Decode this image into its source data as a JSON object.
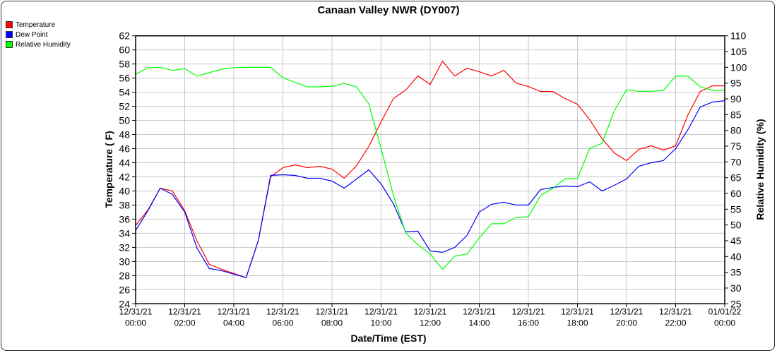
{
  "chart_data": {
    "type": "line",
    "title": "Canaan Valley NWR (DY007)",
    "xlabel": "Date/Time (EST)",
    "ylabel": "Temperature ( F)",
    "y2label": "Relative Humidity (%)",
    "ylim": [
      24,
      62
    ],
    "y2lim": [
      25,
      110
    ],
    "yticks": [
      24,
      26,
      28,
      30,
      32,
      34,
      36,
      38,
      40,
      42,
      44,
      46,
      48,
      50,
      52,
      54,
      56,
      58,
      60,
      62
    ],
    "y2ticks": [
      25,
      30,
      35,
      40,
      45,
      50,
      55,
      60,
      65,
      70,
      75,
      80,
      85,
      90,
      95,
      100,
      105,
      110
    ],
    "xlim_hours": [
      0,
      24
    ],
    "xticks": [
      {
        "h": 0,
        "date": "12/31/21",
        "time": "00:00"
      },
      {
        "h": 2,
        "date": "12/31/21",
        "time": "02:00"
      },
      {
        "h": 4,
        "date": "12/31/21",
        "time": "04:00"
      },
      {
        "h": 6,
        "date": "12/31/21",
        "time": "06:00"
      },
      {
        "h": 8,
        "date": "12/31/21",
        "time": "08:00"
      },
      {
        "h": 10,
        "date": "12/31/21",
        "time": "10:00"
      },
      {
        "h": 12,
        "date": "12/31/21",
        "time": "12:00"
      },
      {
        "h": 14,
        "date": "12/31/21",
        "time": "14:00"
      },
      {
        "h": 16,
        "date": "12/31/21",
        "time": "16:00"
      },
      {
        "h": 18,
        "date": "12/31/21",
        "time": "18:00"
      },
      {
        "h": 20,
        "date": "12/31/21",
        "time": "20:00"
      },
      {
        "h": 22,
        "date": "12/31/21",
        "time": "22:00"
      },
      {
        "h": 24,
        "date": "01/01/22",
        "time": "00:00"
      }
    ],
    "grid": true,
    "legend_position": "top-left",
    "x_hours": [
      0,
      0.5,
      1,
      1.5,
      2,
      2.5,
      3,
      3.5,
      4,
      4.5,
      5,
      5.5,
      6,
      6.5,
      7,
      7.5,
      8,
      8.5,
      9,
      9.5,
      10,
      10.5,
      11,
      11.5,
      12,
      12.5,
      13,
      13.5,
      14,
      14.5,
      15,
      15.5,
      16,
      16.5,
      17,
      17.5,
      18,
      18.5,
      19,
      19.5,
      20,
      20.5,
      21,
      21.5,
      22,
      22.5,
      23,
      23.5,
      24
    ],
    "series": [
      {
        "name": "Temperature",
        "axis": "left",
        "color": "#ff0000",
        "values": [
          35.1,
          37.3,
          40.4,
          40.0,
          37.2,
          32.9,
          29.6,
          28.9,
          28.3,
          27.7,
          33.0,
          42.0,
          43.3,
          43.7,
          43.3,
          43.5,
          43.1,
          41.8,
          43.6,
          46.3,
          49.8,
          53.1,
          54.3,
          56.3,
          55.1,
          58.4,
          56.3,
          57.4,
          56.9,
          56.3,
          57.1,
          55.3,
          54.8,
          54.1,
          54.1,
          53.1,
          52.3,
          50.1,
          47.4,
          45.4,
          44.3,
          45.9,
          46.4,
          45.8,
          46.4,
          50.8,
          54.1,
          54.9,
          54.9
        ]
      },
      {
        "name": "Dew Point",
        "axis": "left",
        "color": "#0000ff",
        "values": [
          34.4,
          37.2,
          40.4,
          39.5,
          37.0,
          31.9,
          29.0,
          28.7,
          28.2,
          27.7,
          33.0,
          42.2,
          42.3,
          42.2,
          41.8,
          41.8,
          41.4,
          40.4,
          41.7,
          43.0,
          41.0,
          38.2,
          34.2,
          34.3,
          31.5,
          31.3,
          32.0,
          33.7,
          37.0,
          38.1,
          38.4,
          38.0,
          38.0,
          40.2,
          40.5,
          40.7,
          40.6,
          41.3,
          40.0,
          40.8,
          41.7,
          43.5,
          44.0,
          44.3,
          46.0,
          48.7,
          51.9,
          52.6,
          52.8
        ]
      },
      {
        "name": "Relative Humidity",
        "axis": "right",
        "color": "#00ff00",
        "values": [
          97.8,
          99.9,
          100,
          99.0,
          99.6,
          97.2,
          98.3,
          99.4,
          99.9,
          100,
          100,
          100,
          96.7,
          95.2,
          93.8,
          93.8,
          94.0,
          94.9,
          93.8,
          88.4,
          74.3,
          59.4,
          47.5,
          43.7,
          40.8,
          35.9,
          40.1,
          40.8,
          45.9,
          50.4,
          50.4,
          52.4,
          52.6,
          59.4,
          61.6,
          64.7,
          64.7,
          74.3,
          75.9,
          86.2,
          92.9,
          92.4,
          92.4,
          92.7,
          97.2,
          97.2,
          93.8,
          92.7,
          92.7
        ]
      }
    ]
  }
}
